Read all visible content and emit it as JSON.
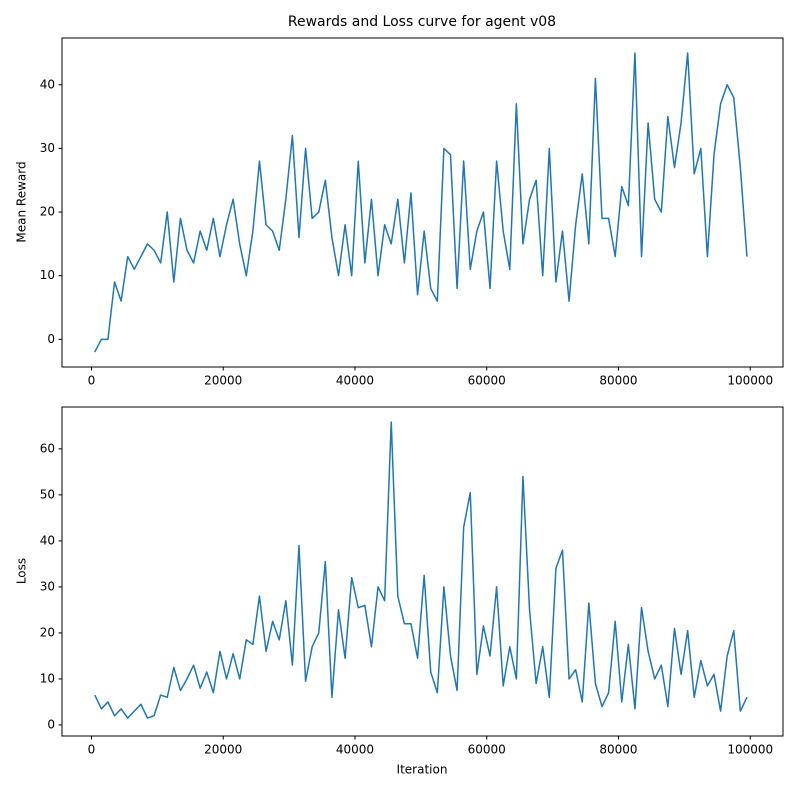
{
  "chart_data": [
    {
      "type": "line",
      "title": "Rewards and Loss curve for agent v08",
      "y_label": "Mean Reward",
      "x": [
        500,
        1500,
        2500,
        3500,
        4500,
        5500,
        6500,
        7500,
        8500,
        9500,
        10500,
        11500,
        12500,
        13500,
        14500,
        15500,
        16500,
        17500,
        18500,
        19500,
        20500,
        21500,
        22500,
        23500,
        24500,
        25500,
        26500,
        27500,
        28500,
        29500,
        30500,
        31500,
        32500,
        33500,
        34500,
        35500,
        36500,
        37500,
        38500,
        39500,
        40500,
        41500,
        42500,
        43500,
        44500,
        45500,
        46500,
        47500,
        48500,
        49500,
        50500,
        51500,
        52500,
        53500,
        54500,
        55500,
        56500,
        57500,
        58500,
        59500,
        60500,
        61500,
        62500,
        63500,
        64500,
        65500,
        66500,
        67500,
        68500,
        69500,
        70500,
        71500,
        72500,
        73500,
        74500,
        75500,
        76500,
        77500,
        78500,
        79500,
        80500,
        81500,
        82500,
        83500,
        84500,
        85500,
        86500,
        87500,
        88500,
        89500,
        90500,
        91500,
        92500,
        93500,
        94500,
        95500,
        96500,
        97500,
        98500,
        99500
      ],
      "series": [
        {
          "color": "#1f77b4",
          "values": [
            -2,
            0,
            0,
            9,
            6,
            13,
            11,
            13,
            15,
            14,
            12,
            20,
            9,
            19,
            14,
            12,
            17,
            14,
            19,
            13,
            18,
            22,
            15,
            10,
            17,
            28,
            18,
            17,
            14,
            22,
            32,
            16,
            30,
            19,
            20,
            25,
            16,
            10,
            18,
            10,
            28,
            12,
            22,
            10,
            18,
            15,
            22,
            12,
            23,
            7,
            17,
            8,
            6,
            30,
            29,
            8,
            28,
            11,
            17,
            20,
            8,
            28,
            17,
            11,
            37,
            15,
            22,
            25,
            10,
            30,
            9,
            17,
            6,
            18,
            26,
            15,
            41,
            19,
            19,
            13,
            24,
            21,
            45,
            13,
            34,
            22,
            20,
            35,
            27,
            34,
            45,
            26,
            30,
            13,
            29,
            37,
            40,
            38,
            27,
            13
          ]
        }
      ],
      "xlim": [
        -4475,
        104975
      ],
      "xticks": [
        0,
        20000,
        40000,
        60000,
        80000,
        100000
      ],
      "ylim": [
        -4.35,
        47.35
      ],
      "yticks": [
        0,
        10,
        20,
        30,
        40
      ]
    },
    {
      "type": "line",
      "x_label": "Iteration",
      "y_label": "Loss",
      "x": [
        500,
        1500,
        2500,
        3500,
        4500,
        5500,
        6500,
        7500,
        8500,
        9500,
        10500,
        11500,
        12500,
        13500,
        14500,
        15500,
        16500,
        17500,
        18500,
        19500,
        20500,
        21500,
        22500,
        23500,
        24500,
        25500,
        26500,
        27500,
        28500,
        29500,
        30500,
        31500,
        32500,
        33500,
        34500,
        35500,
        36500,
        37500,
        38500,
        39500,
        40500,
        41500,
        42500,
        43500,
        44500,
        45500,
        46500,
        47500,
        48500,
        49500,
        50500,
        51500,
        52500,
        53500,
        54500,
        55500,
        56500,
        57500,
        58500,
        59500,
        60500,
        61500,
        62500,
        63500,
        64500,
        65500,
        66500,
        67500,
        68500,
        69500,
        70500,
        71500,
        72500,
        73500,
        74500,
        75500,
        76500,
        77500,
        78500,
        79500,
        80500,
        81500,
        82500,
        83500,
        84500,
        85500,
        86500,
        87500,
        88500,
        89500,
        90500,
        91500,
        92500,
        93500,
        94500,
        95500,
        96500,
        97500,
        98500,
        99500
      ],
      "series": [
        {
          "color": "#1f77b4",
          "values": [
            6.5,
            3.5,
            5,
            2,
            3.5,
            1.5,
            3,
            4.5,
            1.5,
            2,
            6.5,
            6,
            12.5,
            7.5,
            10,
            13,
            8,
            11.5,
            7,
            16,
            10,
            15.5,
            10,
            18.5,
            17.5,
            28,
            16,
            22.5,
            18.5,
            27,
            13,
            39,
            9.5,
            17,
            20,
            35.5,
            6,
            25,
            14.5,
            32,
            25.5,
            26,
            17,
            30,
            27,
            65.8,
            28,
            22,
            22,
            14.5,
            32.5,
            11.5,
            7,
            30,
            15,
            7.5,
            43,
            50.5,
            11,
            21.5,
            15,
            30,
            8.5,
            17,
            10,
            54,
            25,
            9,
            17,
            6,
            34,
            38,
            10,
            12,
            5,
            26.5,
            9,
            4,
            7,
            22.5,
            5,
            17.5,
            3.5,
            25.5,
            16,
            10,
            13,
            4,
            21,
            11,
            20.5,
            6,
            14,
            8.5,
            11,
            3,
            15,
            20.5,
            3,
            6
          ]
        }
      ],
      "xlim": [
        -4475,
        104975
      ],
      "xticks": [
        0,
        20000,
        40000,
        60000,
        80000,
        100000
      ],
      "ylim": [
        -2.4,
        69.1
      ],
      "yticks": [
        0,
        10,
        20,
        30,
        40,
        50,
        60
      ]
    }
  ]
}
